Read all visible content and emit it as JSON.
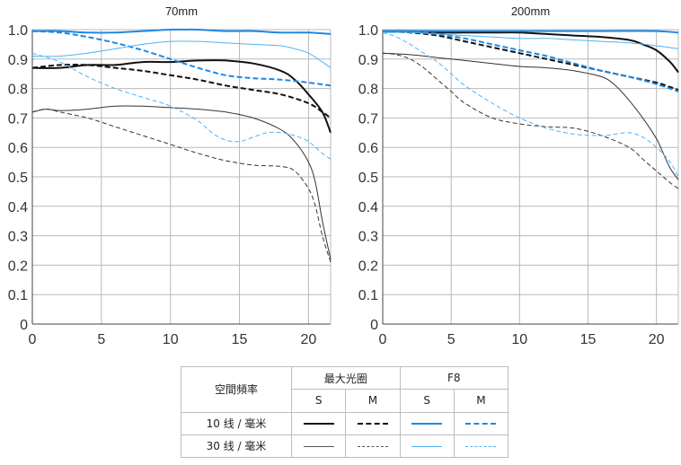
{
  "chart_data": [
    {
      "type": "line",
      "title": "70mm",
      "xlabel": "",
      "ylabel": "",
      "xlim": [
        0,
        21.6
      ],
      "ylim": [
        0,
        1.0
      ],
      "xticks": [
        0,
        5,
        10,
        15,
        20
      ],
      "yticks": [
        "0",
        "0.1",
        "0.2",
        "0.3",
        "0.4",
        "0.5",
        "0.6",
        "0.7",
        "0.8",
        "0.9",
        "1.0"
      ],
      "grid": true,
      "series": [
        {
          "name": "最大光圈 10线/毫米 S",
          "color": "#111111",
          "width": 2,
          "dash": "",
          "x": [
            0,
            2,
            4,
            6,
            8,
            10,
            12,
            14,
            16,
            18,
            19,
            20,
            21,
            21.6
          ],
          "y": [
            0.87,
            0.87,
            0.88,
            0.88,
            0.89,
            0.89,
            0.895,
            0.895,
            0.885,
            0.86,
            0.83,
            0.78,
            0.72,
            0.65
          ]
        },
        {
          "name": "最大光圈 10线/毫米 M",
          "color": "#111111",
          "width": 2,
          "dash": "6,3",
          "x": [
            0,
            2,
            4,
            6,
            8,
            10,
            12,
            14,
            16,
            18,
            20,
            21,
            21.6
          ],
          "y": [
            0.87,
            0.88,
            0.88,
            0.87,
            0.86,
            0.845,
            0.83,
            0.81,
            0.795,
            0.78,
            0.75,
            0.72,
            0.7
          ]
        },
        {
          "name": "最大光圈 30线/毫米 S",
          "color": "#333333",
          "width": 1,
          "dash": "",
          "x": [
            0,
            1,
            2,
            4,
            6,
            8,
            10,
            12,
            14,
            16,
            18,
            19,
            20,
            20.5,
            21,
            21.6
          ],
          "y": [
            0.72,
            0.73,
            0.725,
            0.73,
            0.74,
            0.74,
            0.735,
            0.73,
            0.72,
            0.7,
            0.66,
            0.62,
            0.55,
            0.48,
            0.35,
            0.22
          ]
        },
        {
          "name": "最大光圈 30线/毫米 M",
          "color": "#333333",
          "width": 1,
          "dash": "5,3",
          "x": [
            0,
            1,
            2,
            4,
            6,
            8,
            10,
            12,
            14,
            16,
            18,
            19,
            20,
            20.5,
            21,
            21.6
          ],
          "y": [
            0.72,
            0.73,
            0.72,
            0.7,
            0.67,
            0.64,
            0.61,
            0.58,
            0.555,
            0.54,
            0.535,
            0.52,
            0.46,
            0.4,
            0.3,
            0.21
          ]
        },
        {
          "name": "F8 10线/毫米 S",
          "color": "#1e88e5",
          "width": 2,
          "dash": "",
          "x": [
            0,
            2,
            4,
            6,
            8,
            10,
            11,
            12,
            14,
            16,
            18,
            20,
            21.6
          ],
          "y": [
            0.995,
            0.995,
            0.99,
            0.99,
            0.995,
            1.0,
            1.0,
            1.0,
            0.995,
            0.995,
            0.99,
            0.99,
            0.985
          ]
        },
        {
          "name": "F8 10线/毫米 M",
          "color": "#1e88e5",
          "width": 2,
          "dash": "6,3",
          "x": [
            0,
            2,
            4,
            6,
            8,
            10,
            12,
            14,
            16,
            18,
            20,
            21.6
          ],
          "y": [
            0.995,
            0.99,
            0.975,
            0.955,
            0.93,
            0.9,
            0.87,
            0.845,
            0.835,
            0.83,
            0.82,
            0.81
          ]
        },
        {
          "name": "F8 30线/毫米 S",
          "color": "#4fb3f5",
          "width": 1,
          "dash": "",
          "x": [
            0,
            2,
            4,
            6,
            8,
            10,
            12,
            14,
            16,
            18,
            19,
            20,
            21,
            21.6
          ],
          "y": [
            0.91,
            0.91,
            0.92,
            0.935,
            0.95,
            0.96,
            0.96,
            0.955,
            0.95,
            0.945,
            0.935,
            0.92,
            0.89,
            0.87
          ]
        },
        {
          "name": "F8 30线/毫米 M",
          "color": "#4fb3f5",
          "width": 1,
          "dash": "5,3",
          "x": [
            0,
            2,
            4,
            6,
            8,
            10,
            12,
            13,
            14,
            15,
            16,
            17,
            18,
            19,
            20,
            21,
            21.6
          ],
          "y": [
            0.92,
            0.89,
            0.84,
            0.8,
            0.77,
            0.74,
            0.69,
            0.65,
            0.625,
            0.62,
            0.635,
            0.65,
            0.65,
            0.64,
            0.62,
            0.58,
            0.56
          ]
        }
      ]
    },
    {
      "type": "line",
      "title": "200mm",
      "xlabel": "",
      "ylabel": "",
      "xlim": [
        0,
        21.6
      ],
      "ylim": [
        0,
        1.0
      ],
      "xticks": [
        0,
        5,
        10,
        15,
        20
      ],
      "yticks": [
        "0",
        "0.1",
        "0.2",
        "0.3",
        "0.4",
        "0.5",
        "0.6",
        "0.7",
        "0.8",
        "0.9",
        "1.0"
      ],
      "grid": true,
      "series": [
        {
          "name": "最大光圈 10线/毫米 S",
          "color": "#111111",
          "width": 2,
          "dash": "",
          "x": [
            0,
            2,
            4,
            6,
            8,
            10,
            12,
            14,
            16,
            18,
            19,
            20,
            21,
            21.6
          ],
          "y": [
            0.995,
            0.995,
            0.99,
            0.99,
            0.99,
            0.99,
            0.985,
            0.98,
            0.975,
            0.965,
            0.95,
            0.93,
            0.89,
            0.855
          ]
        },
        {
          "name": "最大光圈 10线/毫米 M",
          "color": "#111111",
          "width": 2,
          "dash": "6,3",
          "x": [
            0,
            2,
            4,
            6,
            8,
            10,
            12,
            14,
            16,
            18,
            20,
            21,
            21.6
          ],
          "y": [
            0.995,
            0.99,
            0.98,
            0.96,
            0.94,
            0.92,
            0.9,
            0.88,
            0.86,
            0.84,
            0.82,
            0.805,
            0.795
          ]
        },
        {
          "name": "最大光圈 30线/毫米 S",
          "color": "#333333",
          "width": 1,
          "dash": "",
          "x": [
            0,
            2,
            4,
            6,
            8,
            10,
            12,
            14,
            16,
            17,
            18,
            19,
            20,
            20.5,
            21,
            21.6
          ],
          "y": [
            0.92,
            0.915,
            0.905,
            0.895,
            0.885,
            0.875,
            0.87,
            0.86,
            0.84,
            0.81,
            0.76,
            0.7,
            0.63,
            0.58,
            0.53,
            0.49
          ]
        },
        {
          "name": "最大光圈 30线/毫米 M",
          "color": "#333333",
          "width": 1,
          "dash": "5,3",
          "x": [
            0,
            1,
            2,
            3,
            4,
            5,
            6,
            8,
            10,
            12,
            14,
            16,
            18,
            19,
            20,
            21,
            21.6
          ],
          "y": [
            0.92,
            0.915,
            0.9,
            0.87,
            0.83,
            0.79,
            0.75,
            0.7,
            0.68,
            0.67,
            0.665,
            0.64,
            0.6,
            0.56,
            0.52,
            0.48,
            0.46
          ]
        },
        {
          "name": "F8 10线/毫米 S",
          "color": "#1e88e5",
          "width": 2,
          "dash": "",
          "x": [
            0,
            4,
            8,
            12,
            16,
            20,
            21.6
          ],
          "y": [
            0.995,
            0.995,
            0.995,
            0.995,
            0.995,
            0.995,
            0.99
          ]
        },
        {
          "name": "F8 10线/毫米 M",
          "color": "#1e88e5",
          "width": 2,
          "dash": "6,3",
          "x": [
            0,
            2,
            4,
            6,
            8,
            10,
            12,
            14,
            16,
            18,
            20,
            21.6
          ],
          "y": [
            0.995,
            0.995,
            0.985,
            0.97,
            0.95,
            0.93,
            0.91,
            0.885,
            0.86,
            0.84,
            0.815,
            0.79
          ]
        },
        {
          "name": "F8 30线/毫米 S",
          "color": "#4fb3f5",
          "width": 1,
          "dash": "",
          "x": [
            0,
            2,
            4,
            6,
            8,
            10,
            12,
            14,
            16,
            18,
            20,
            21.6
          ],
          "y": [
            0.99,
            0.99,
            0.985,
            0.98,
            0.975,
            0.97,
            0.97,
            0.965,
            0.96,
            0.955,
            0.945,
            0.935
          ]
        },
        {
          "name": "F8 30线/毫米 M",
          "color": "#4fb3f5",
          "width": 1,
          "dash": "5,3",
          "x": [
            0,
            1,
            2,
            3,
            4,
            5,
            6,
            8,
            10,
            12,
            14,
            16,
            17,
            18,
            19,
            20,
            21,
            21.6
          ],
          "y": [
            0.99,
            0.975,
            0.95,
            0.92,
            0.89,
            0.85,
            0.81,
            0.75,
            0.7,
            0.665,
            0.645,
            0.64,
            0.645,
            0.65,
            0.635,
            0.6,
            0.55,
            0.5
          ]
        }
      ]
    }
  ],
  "legend": {
    "row_header": "空間頻率",
    "group1": "最大光圈",
    "group2": "F8",
    "sub_s": "S",
    "sub_m": "M",
    "row1_label": "10 线 / 毫米",
    "row2_label": "30 线 / 毫米",
    "colors": {
      "black": "#111111",
      "black_thin": "#555555",
      "blue": "#1e88e5",
      "blue_thin": "#4fb3f5"
    }
  }
}
